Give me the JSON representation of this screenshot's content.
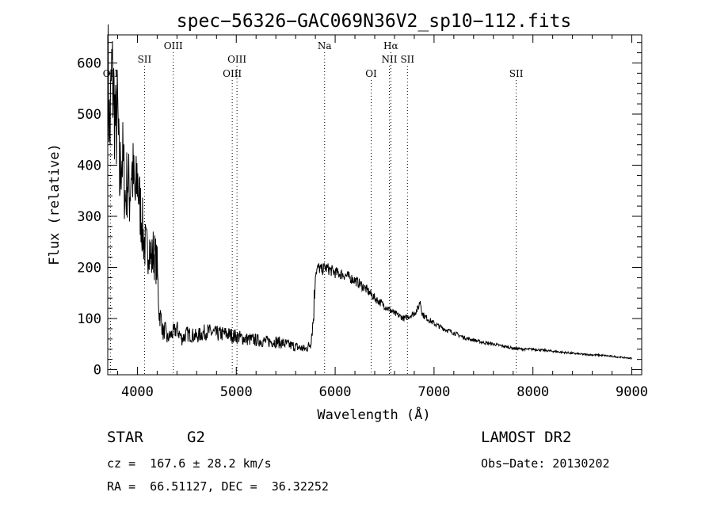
{
  "chart_data": {
    "type": "line",
    "title": "spec−56326−GAC069N36V2_sp10−112.fits",
    "xlabel": "Wavelength (Å)",
    "ylabel": "Flux (relative)",
    "xlim": [
      3700,
      9100
    ],
    "ylim": [
      -10,
      655
    ],
    "x_ticks": [
      4000,
      5000,
      6000,
      7000,
      8000,
      9000
    ],
    "y_ticks": [
      0,
      100,
      200,
      300,
      400,
      500,
      600
    ],
    "grid": false,
    "series": [
      {
        "x": [
          3700,
          3720,
          3740,
          3760,
          3780,
          3800,
          3820,
          3840,
          3860,
          3880,
          3900,
          3920,
          3940,
          3960,
          3980,
          4000,
          4020,
          4040,
          4060,
          4080,
          4100,
          4120,
          4140,
          4160,
          4180,
          4200,
          4220,
          4240,
          4260,
          4280,
          4300,
          4350,
          4400,
          4450,
          4500,
          4600,
          4700,
          4800,
          4900,
          5000,
          5100,
          5200,
          5300,
          5400,
          5500,
          5600,
          5700,
          5750,
          5780,
          5800,
          5830,
          5860,
          5900,
          6000,
          6100,
          6200,
          6300,
          6400,
          6500,
          6600,
          6700,
          6800,
          6840,
          6860,
          6880,
          6900,
          7000,
          7100,
          7200,
          7300,
          7400,
          7500,
          7600,
          7700,
          7800,
          7900,
          8000,
          8100,
          8200,
          8300,
          8400,
          8500,
          8600,
          8700,
          8800,
          8900,
          9000
        ],
        "y": [
          600,
          450,
          580,
          540,
          470,
          500,
          360,
          430,
          390,
          330,
          380,
          340,
          400,
          370,
          330,
          380,
          330,
          300,
          260,
          240,
          230,
          250,
          210,
          230,
          220,
          200,
          110,
          100,
          70,
          80,
          60,
          70,
          80,
          60,
          70,
          65,
          75,
          70,
          70,
          65,
          60,
          58,
          55,
          55,
          50,
          45,
          40,
          50,
          100,
          190,
          200,
          195,
          200,
          190,
          185,
          175,
          160,
          140,
          125,
          110,
          100,
          110,
          120,
          135,
          110,
          105,
          90,
          80,
          72,
          63,
          58,
          53,
          50,
          46,
          42,
          40,
          40,
          38,
          36,
          34,
          32,
          30,
          29,
          28,
          26,
          24,
          22
        ]
      }
    ],
    "lines": [
      {
        "label": "OII",
        "wavelength": 3727,
        "tier": 3
      },
      {
        "label": "SII",
        "wavelength": 4072,
        "tier": 2
      },
      {
        "label": "OIII",
        "wavelength": 4363,
        "tier": 1
      },
      {
        "label": "OIII",
        "wavelength": 4959,
        "tier": 3
      },
      {
        "label": "OIII",
        "wavelength": 5007,
        "tier": 2
      },
      {
        "label": "Na",
        "wavelength": 5893,
        "tier": 1
      },
      {
        "label": "OI",
        "wavelength": 6364,
        "tier": 3
      },
      {
        "label": "Hα",
        "wavelength": 6563,
        "tier": 1
      },
      {
        "label": "NII",
        "wavelength": 6548,
        "tier": 2
      },
      {
        "label": "SII",
        "wavelength": 6731,
        "tier": 2
      },
      {
        "label": "SII",
        "wavelength": 7831,
        "tier": 3
      }
    ]
  },
  "info": {
    "object_class": "STAR",
    "subclass": "G2",
    "survey": "LAMOST DR2",
    "velocity": "cz =  167.6 ± 28.2 km/s",
    "obs_date": "Obs−Date: 20130202",
    "coords": "RA =  66.51127, DEC =  36.32252"
  }
}
